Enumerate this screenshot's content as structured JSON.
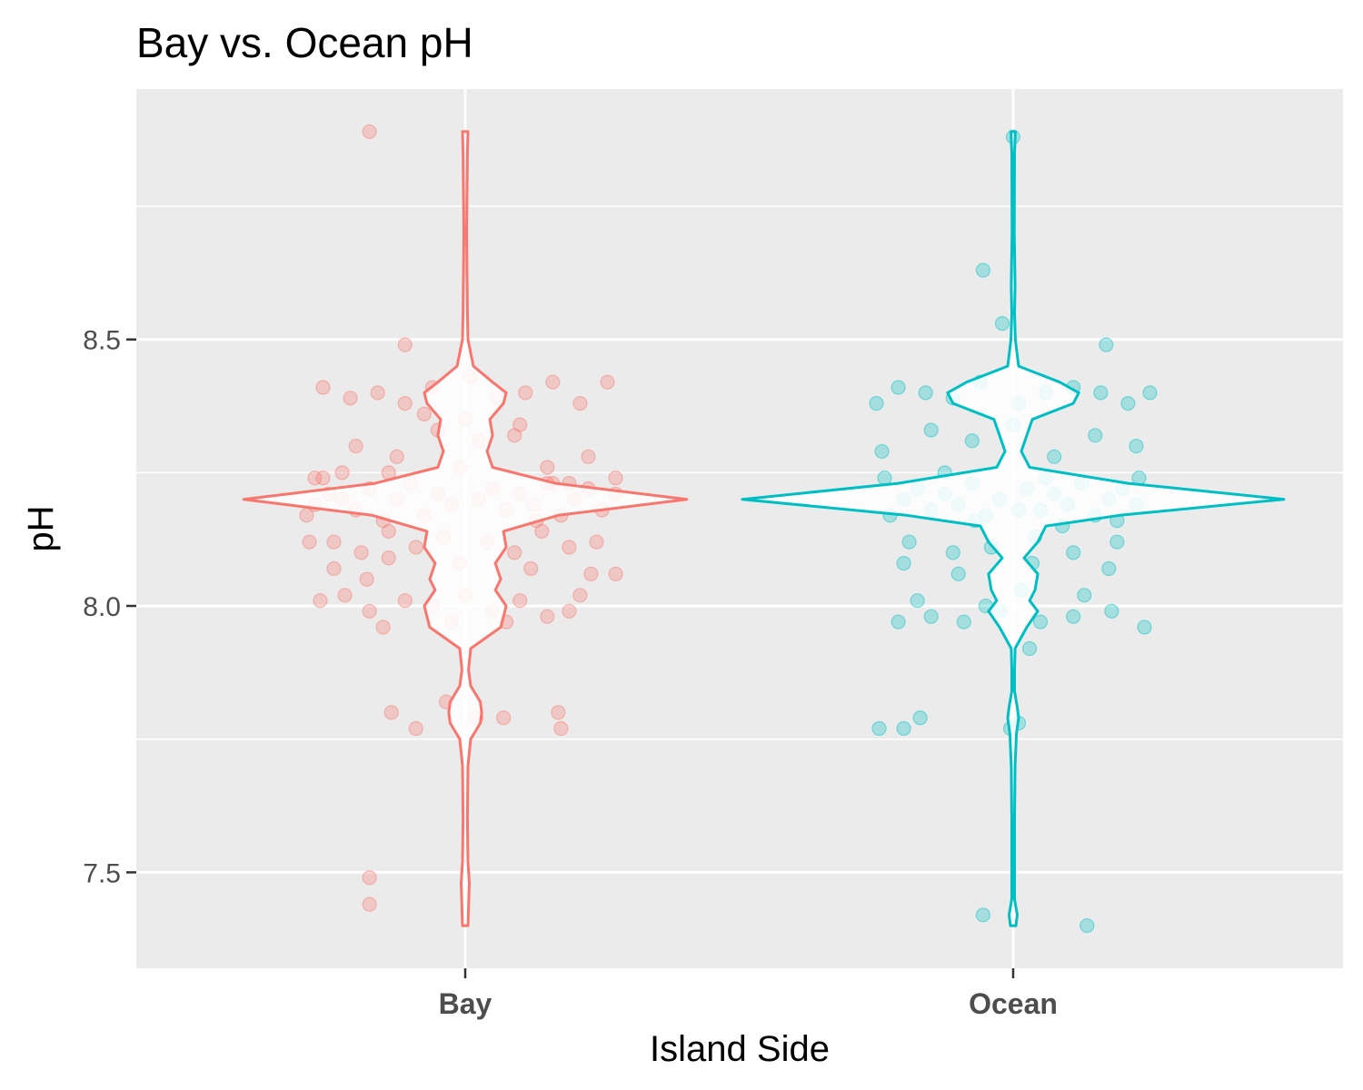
{
  "chart_data": {
    "type": "violin",
    "title": "Bay vs. Ocean pH",
    "xlabel": "Island Side",
    "ylabel": "pH",
    "categories": [
      "Bay",
      "Ocean"
    ],
    "ylim": [
      7.32,
      8.97
    ],
    "yticks": [
      7.5,
      8.0,
      8.5
    ],
    "ytick_labels": [
      "7.5",
      "8.0",
      "8.5"
    ],
    "grid": true,
    "legend": "none",
    "colors": {
      "Bay": "#F8766D",
      "Ocean": "#00BFC4",
      "panel": "#EBEBEB",
      "grid": "#FFFFFF"
    },
    "series": [
      {
        "category": "Bay",
        "violin_profile": [
          [
            7.4,
            0.01
          ],
          [
            7.48,
            0.015
          ],
          [
            7.52,
            0.01
          ],
          [
            7.6,
            0.008
          ],
          [
            7.7,
            0.01
          ],
          [
            7.75,
            0.02
          ],
          [
            7.78,
            0.055
          ],
          [
            7.8,
            0.06
          ],
          [
            7.82,
            0.055
          ],
          [
            7.85,
            0.02
          ],
          [
            7.88,
            0.012
          ],
          [
            7.92,
            0.02
          ],
          [
            7.96,
            0.13
          ],
          [
            8.0,
            0.15
          ],
          [
            8.03,
            0.11
          ],
          [
            8.05,
            0.13
          ],
          [
            8.08,
            0.11
          ],
          [
            8.11,
            0.15
          ],
          [
            8.14,
            0.14
          ],
          [
            8.17,
            0.34
          ],
          [
            8.2,
            0.81
          ],
          [
            8.23,
            0.33
          ],
          [
            8.26,
            0.1
          ],
          [
            8.29,
            0.08
          ],
          [
            8.32,
            0.1
          ],
          [
            8.35,
            0.09
          ],
          [
            8.38,
            0.14
          ],
          [
            8.4,
            0.15
          ],
          [
            8.42,
            0.1
          ],
          [
            8.45,
            0.03
          ],
          [
            8.5,
            0.01
          ],
          [
            8.55,
            0.008
          ],
          [
            8.7,
            0.005
          ],
          [
            8.85,
            0.008
          ],
          [
            8.89,
            0.01
          ]
        ],
        "points": [
          [
            -0.58,
            8.17
          ],
          [
            -0.55,
            8.19
          ],
          [
            -0.52,
            8.24
          ],
          [
            -0.57,
            8.12
          ],
          [
            -0.5,
            8.21
          ],
          [
            -0.45,
            8.2
          ],
          [
            -0.4,
            8.18
          ],
          [
            -0.35,
            8.22
          ],
          [
            -0.3,
            8.16
          ],
          [
            -0.25,
            8.2
          ],
          [
            -0.2,
            8.23
          ],
          [
            -0.15,
            8.17
          ],
          [
            -0.1,
            8.21
          ],
          [
            -0.05,
            8.19
          ],
          [
            0.05,
            8.2
          ],
          [
            0.1,
            8.22
          ],
          [
            0.15,
            8.18
          ],
          [
            0.2,
            8.21
          ],
          [
            0.25,
            8.19
          ],
          [
            0.3,
            8.23
          ],
          [
            0.35,
            8.17
          ],
          [
            0.4,
            8.2
          ],
          [
            0.45,
            8.22
          ],
          [
            0.5,
            8.18
          ],
          [
            0.55,
            8.21
          ],
          [
            -0.48,
            8.12
          ],
          [
            -0.38,
            8.1
          ],
          [
            -0.28,
            8.14
          ],
          [
            -0.18,
            8.11
          ],
          [
            -0.08,
            8.13
          ],
          [
            0.08,
            8.12
          ],
          [
            0.18,
            8.1
          ],
          [
            0.28,
            8.14
          ],
          [
            0.38,
            8.11
          ],
          [
            0.48,
            8.12
          ],
          [
            -0.52,
            8.41
          ],
          [
            -0.42,
            8.39
          ],
          [
            -0.32,
            8.4
          ],
          [
            -0.22,
            8.38
          ],
          [
            -0.12,
            8.41
          ],
          [
            0.02,
            8.43
          ],
          [
            0.12,
            8.39
          ],
          [
            0.22,
            8.4
          ],
          [
            0.32,
            8.42
          ],
          [
            0.42,
            8.38
          ],
          [
            0.52,
            8.42
          ],
          [
            -0.4,
            8.3
          ],
          [
            -0.25,
            8.28
          ],
          [
            -0.1,
            8.33
          ],
          [
            0.05,
            8.31
          ],
          [
            0.18,
            8.32
          ],
          [
            0.3,
            8.26
          ],
          [
            0.45,
            8.28
          ],
          [
            -0.53,
            8.01
          ],
          [
            -0.44,
            8.02
          ],
          [
            -0.35,
            7.99
          ],
          [
            -0.22,
            8.01
          ],
          [
            -0.12,
            8.0
          ],
          [
            0.0,
            8.02
          ],
          [
            0.1,
            7.99
          ],
          [
            0.2,
            8.01
          ],
          [
            0.3,
            7.98
          ],
          [
            0.42,
            8.02
          ],
          [
            0.55,
            8.06
          ],
          [
            -0.3,
            7.96
          ],
          [
            -0.05,
            7.97
          ],
          [
            0.15,
            7.97
          ],
          [
            0.38,
            7.99
          ],
          [
            -0.48,
            8.07
          ],
          [
            -0.28,
            8.09
          ],
          [
            -0.02,
            8.08
          ],
          [
            0.24,
            8.07
          ],
          [
            0.46,
            8.06
          ],
          [
            -0.27,
            7.8
          ],
          [
            -0.18,
            7.77
          ],
          [
            -0.07,
            7.82
          ],
          [
            0.04,
            7.79
          ],
          [
            0.14,
            7.79
          ],
          [
            0.34,
            7.8
          ],
          [
            0.35,
            7.77
          ],
          [
            -0.35,
            8.89
          ],
          [
            -0.22,
            8.49
          ],
          [
            -0.35,
            7.44
          ],
          [
            -0.35,
            7.49
          ],
          [
            -0.55,
            8.24
          ],
          [
            -0.45,
            8.25
          ],
          [
            0.55,
            8.24
          ],
          [
            0.38,
            8.23
          ],
          [
            -0.15,
            8.36
          ],
          [
            0.0,
            8.35
          ],
          [
            0.2,
            8.34
          ],
          [
            -0.28,
            8.25
          ],
          [
            0.32,
            8.23
          ],
          [
            -0.02,
            8.26
          ],
          [
            0.26,
            8.16
          ],
          [
            -0.36,
            8.05
          ]
        ]
      },
      {
        "category": "Ocean",
        "violin_profile": [
          [
            7.4,
            0.01
          ],
          [
            7.42,
            0.015
          ],
          [
            7.45,
            0.005
          ],
          [
            7.6,
            0.005
          ],
          [
            7.7,
            0.007
          ],
          [
            7.76,
            0.012
          ],
          [
            7.79,
            0.02
          ],
          [
            7.81,
            0.015
          ],
          [
            7.84,
            0.005
          ],
          [
            7.88,
            0.005
          ],
          [
            7.92,
            0.007
          ],
          [
            7.96,
            0.05
          ],
          [
            7.99,
            0.09
          ],
          [
            8.01,
            0.06
          ],
          [
            8.03,
            0.08
          ],
          [
            8.06,
            0.09
          ],
          [
            8.09,
            0.04
          ],
          [
            8.12,
            0.09
          ],
          [
            8.15,
            0.12
          ],
          [
            8.17,
            0.39
          ],
          [
            8.2,
            0.99
          ],
          [
            8.23,
            0.42
          ],
          [
            8.26,
            0.06
          ],
          [
            8.29,
            0.03
          ],
          [
            8.32,
            0.05
          ],
          [
            8.35,
            0.07
          ],
          [
            8.38,
            0.22
          ],
          [
            8.4,
            0.24
          ],
          [
            8.42,
            0.17
          ],
          [
            8.45,
            0.02
          ],
          [
            8.5,
            0.008
          ],
          [
            8.55,
            0.005
          ],
          [
            8.6,
            0.007
          ],
          [
            8.7,
            0.004
          ],
          [
            8.85,
            0.005
          ],
          [
            8.89,
            0.008
          ]
        ],
        "points": [
          [
            -0.4,
            8.2
          ],
          [
            -0.35,
            8.22
          ],
          [
            -0.3,
            8.18
          ],
          [
            -0.25,
            8.21
          ],
          [
            -0.2,
            8.19
          ],
          [
            -0.15,
            8.23
          ],
          [
            -0.1,
            8.17
          ],
          [
            -0.05,
            8.2
          ],
          [
            0.05,
            8.22
          ],
          [
            0.1,
            8.18
          ],
          [
            0.15,
            8.21
          ],
          [
            0.2,
            8.19
          ],
          [
            0.25,
            8.23
          ],
          [
            0.3,
            8.17
          ],
          [
            0.35,
            8.2
          ],
          [
            0.4,
            8.22
          ],
          [
            -0.45,
            8.17
          ],
          [
            0.45,
            8.19
          ],
          [
            -0.38,
            8.12
          ],
          [
            -0.22,
            8.1
          ],
          [
            -0.08,
            8.11
          ],
          [
            0.08,
            8.13
          ],
          [
            0.22,
            8.1
          ],
          [
            0.38,
            8.12
          ],
          [
            -0.5,
            8.38
          ],
          [
            -0.42,
            8.41
          ],
          [
            -0.32,
            8.4
          ],
          [
            -0.22,
            8.39
          ],
          [
            -0.12,
            8.42
          ],
          [
            0.02,
            8.38
          ],
          [
            0.12,
            8.4
          ],
          [
            0.22,
            8.41
          ],
          [
            0.32,
            8.4
          ],
          [
            0.42,
            8.38
          ],
          [
            0.5,
            8.4
          ],
          [
            -0.48,
            8.29
          ],
          [
            -0.3,
            8.33
          ],
          [
            -0.15,
            8.31
          ],
          [
            0.0,
            8.34
          ],
          [
            0.15,
            8.28
          ],
          [
            0.3,
            8.32
          ],
          [
            0.45,
            8.3
          ],
          [
            -0.42,
            7.97
          ],
          [
            -0.3,
            7.98
          ],
          [
            -0.18,
            7.97
          ],
          [
            -0.05,
            7.99
          ],
          [
            0.1,
            7.97
          ],
          [
            0.22,
            7.98
          ],
          [
            0.36,
            7.99
          ],
          [
            0.48,
            7.96
          ],
          [
            -0.35,
            8.01
          ],
          [
            -0.1,
            8.0
          ],
          [
            0.03,
            8.03
          ],
          [
            0.26,
            8.02
          ],
          [
            -0.4,
            8.08
          ],
          [
            -0.2,
            8.06
          ],
          [
            0.07,
            8.08
          ],
          [
            0.35,
            8.07
          ],
          [
            -0.49,
            7.77
          ],
          [
            -0.4,
            7.77
          ],
          [
            -0.34,
            7.79
          ],
          [
            -0.01,
            7.77
          ],
          [
            0.02,
            7.78
          ],
          [
            -0.11,
            8.63
          ],
          [
            0.34,
            8.49
          ],
          [
            -0.04,
            8.53
          ],
          [
            0.0,
            8.88
          ],
          [
            -0.11,
            7.42
          ],
          [
            0.27,
            7.4
          ],
          [
            0.06,
            7.92
          ],
          [
            -0.47,
            8.24
          ],
          [
            0.46,
            8.24
          ],
          [
            -0.25,
            8.25
          ],
          [
            0.12,
            8.24
          ],
          [
            0.38,
            8.16
          ],
          [
            -0.14,
            8.16
          ],
          [
            0.02,
            8.18
          ],
          [
            0.18,
            8.15
          ]
        ]
      }
    ]
  }
}
